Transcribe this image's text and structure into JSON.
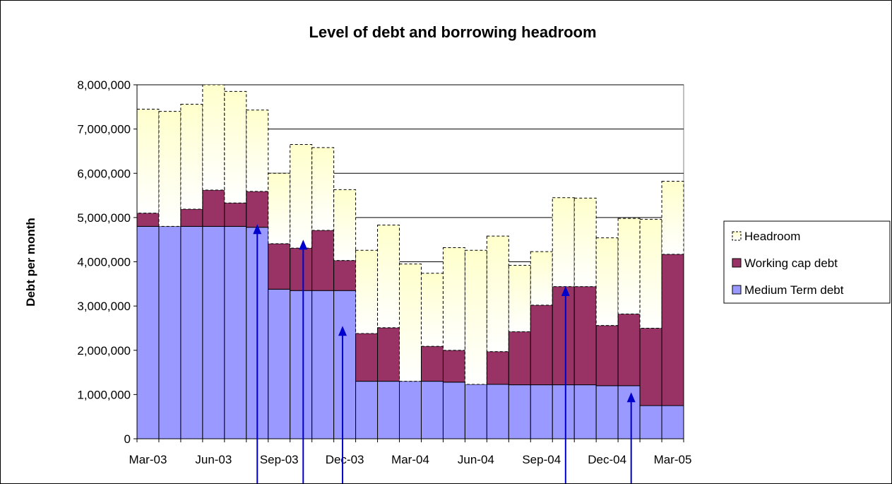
{
  "chart_data": {
    "type": "bar",
    "stacked": true,
    "title": "Level of debt and borrowing headroom",
    "xlabel": "",
    "ylabel": "Debt per month",
    "ylim": [
      0,
      8000000
    ],
    "ytick_labels": [
      "0",
      "1,000,000",
      "2,000,000",
      "3,000,000",
      "4,000,000",
      "5,000,000",
      "6,000,000",
      "7,000,000",
      "8,000,000"
    ],
    "ytick_values": [
      0,
      1000000,
      2000000,
      3000000,
      4000000,
      5000000,
      6000000,
      7000000,
      8000000
    ],
    "grid": true,
    "legend_position": "right",
    "categories": [
      "Mar-03",
      "Apr-03",
      "May-03",
      "Jun-03",
      "Jul-03",
      "Aug-03",
      "Sep-03",
      "Oct-03",
      "Nov-03",
      "Dec-03",
      "Jan-04",
      "Feb-04",
      "Mar-04",
      "Apr-04",
      "May-04",
      "Jun-04",
      "Jul-04",
      "Aug-04",
      "Sep-04",
      "Oct-04",
      "Nov-04",
      "Dec-04",
      "Jan-05",
      "Feb-05",
      "Mar-05"
    ],
    "xtick_labels": [
      {
        "label": "Mar-03",
        "index": 0
      },
      {
        "label": "Jun-03",
        "index": 3
      },
      {
        "label": "Sep-03",
        "index": 6
      },
      {
        "label": "Dec-03",
        "index": 9
      },
      {
        "label": "Mar-04",
        "index": 12
      },
      {
        "label": "Jun-04",
        "index": 15
      },
      {
        "label": "Sep-04",
        "index": 18
      },
      {
        "label": "Dec-04",
        "index": 21
      },
      {
        "label": "Mar-05",
        "index": 24
      }
    ],
    "series": [
      {
        "name": "Medium Term debt",
        "color": "#9999ff",
        "values": [
          4800000,
          4800000,
          4800000,
          4800000,
          4800000,
          4780000,
          3380000,
          3350000,
          3350000,
          3350000,
          1300000,
          1300000,
          1300000,
          1300000,
          1280000,
          1230000,
          1230000,
          1220000,
          1220000,
          1220000,
          1220000,
          1200000,
          1200000,
          750000,
          750000
        ]
      },
      {
        "name": "Working cap debt",
        "color": "#993366",
        "values": [
          300000,
          0,
          390000,
          820000,
          530000,
          810000,
          1030000,
          960000,
          1360000,
          680000,
          1080000,
          1210000,
          0,
          790000,
          720000,
          0,
          740000,
          1200000,
          1800000,
          2220000,
          2220000,
          1360000,
          1620000,
          1750000,
          3420000
        ]
      },
      {
        "name": "Headroom",
        "color": "#ffffcc",
        "values": [
          2350000,
          2600000,
          2370000,
          2380000,
          2520000,
          1840000,
          1590000,
          2340000,
          1870000,
          1600000,
          1880000,
          2320000,
          2650000,
          1650000,
          2320000,
          3030000,
          2610000,
          1500000,
          1210000,
          2010000,
          2000000,
          1980000,
          2160000,
          2460000,
          1650000
        ]
      }
    ],
    "annotation_arrows": [
      {
        "x_index": 5.5,
        "y_value": 4850000
      },
      {
        "x_index": 7.6,
        "y_value": 4500000
      },
      {
        "x_index": 9.4,
        "y_value": 2550000
      },
      {
        "x_index": 19.6,
        "y_value": 3450000
      },
      {
        "x_index": 22.6,
        "y_value": 1050000
      }
    ]
  }
}
